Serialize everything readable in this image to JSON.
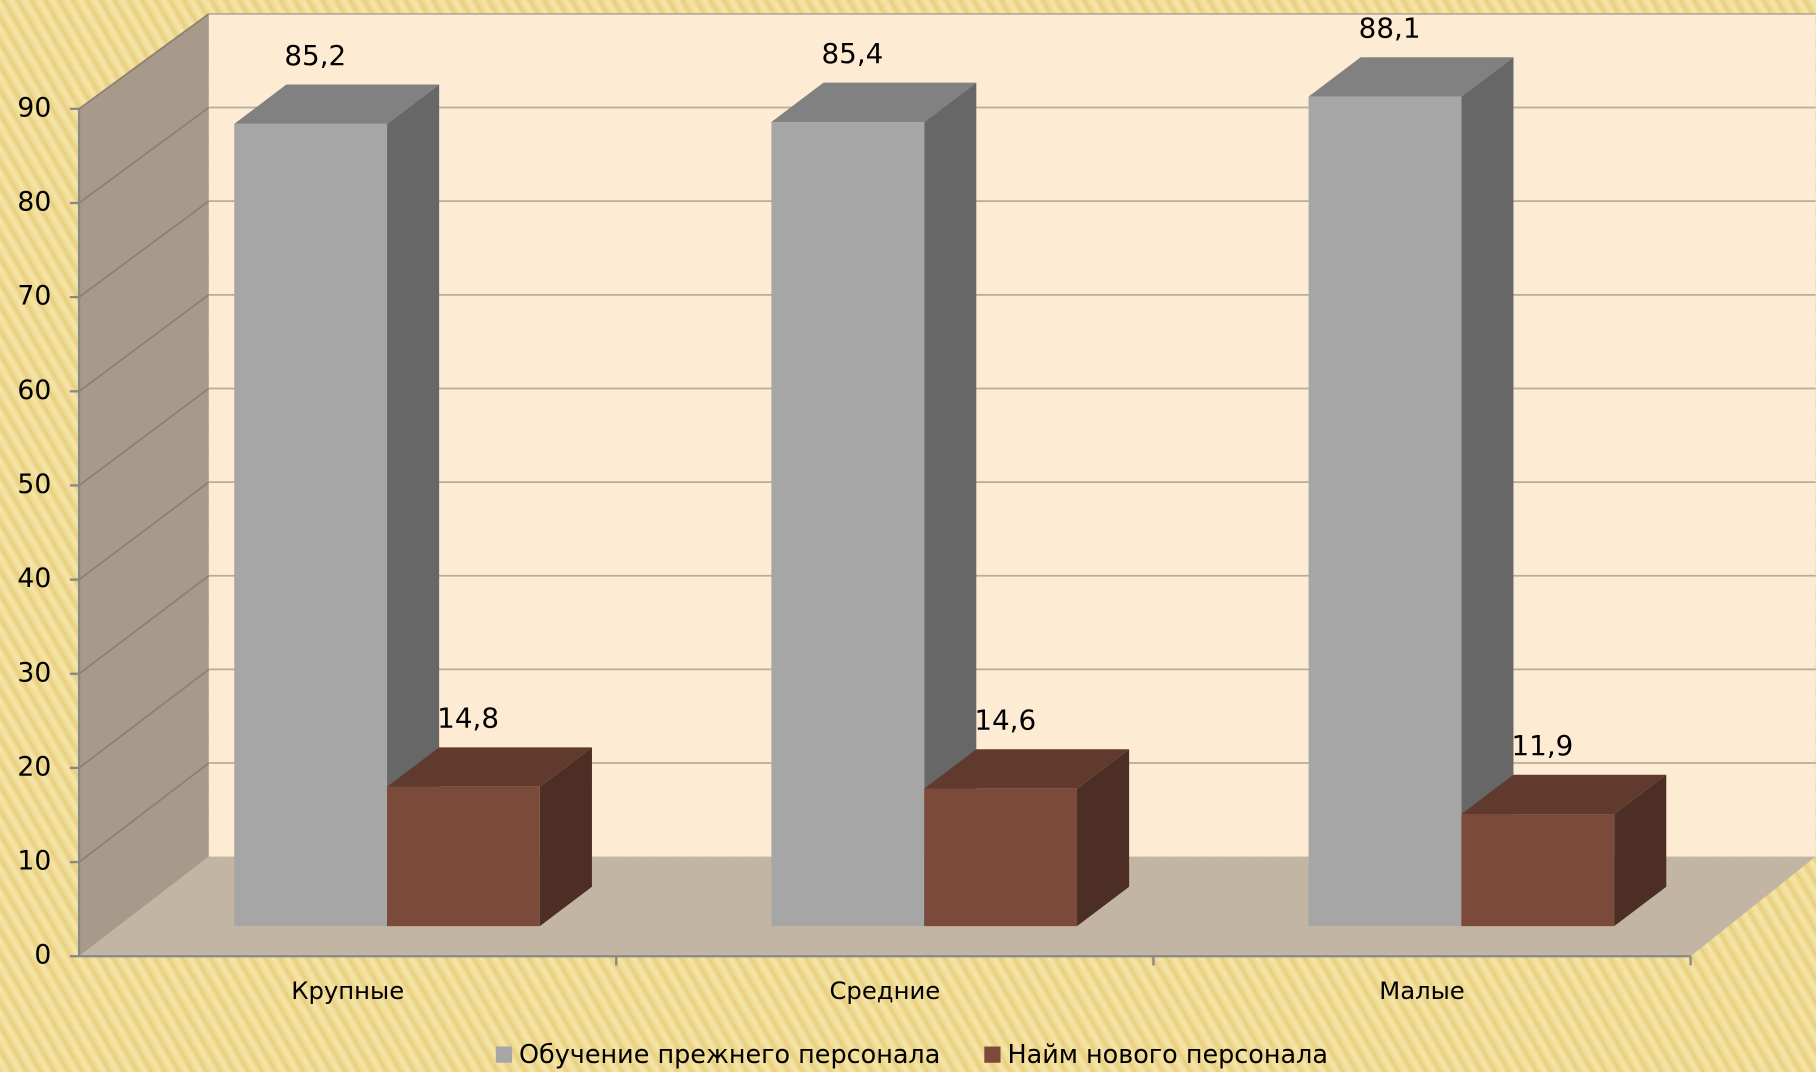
{
  "chart_data": {
    "type": "bar3d",
    "categories": [
      "Крупные",
      "Средние",
      "Малые"
    ],
    "series": [
      {
        "name": "Обучение прежнего персонала",
        "color": "#a6a6a6",
        "values": [
          85.2,
          85.4,
          88.1
        ],
        "value_labels": [
          "85,2",
          "85,4",
          "88,1"
        ]
      },
      {
        "name": "Найм нового персонала",
        "color": "#7b4a3a",
        "values": [
          14.8,
          14.6,
          11.9
        ],
        "value_labels": [
          "14,8",
          "14,6",
          "11,9"
        ]
      }
    ],
    "ylim": [
      0,
      90
    ],
    "yticks": [
      0,
      10,
      20,
      30,
      40,
      50,
      60,
      70,
      80,
      90
    ],
    "grid": true,
    "legend": "bottom"
  }
}
